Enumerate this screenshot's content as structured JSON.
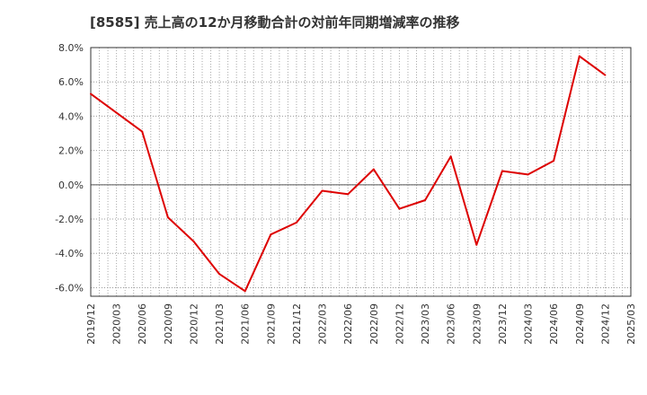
{
  "chart_data": {
    "type": "line",
    "title": "[8585]  売上高の12か月移動合計の対前年同期増減率の推移",
    "xlabel": "",
    "ylabel": "",
    "ylim": [
      -6.5,
      8.0
    ],
    "y_ticks": [
      8.0,
      6.0,
      4.0,
      2.0,
      0.0,
      -2.0,
      -4.0,
      -6.0
    ],
    "y_tick_labels": [
      "8.0%",
      "6.0%",
      "4.0%",
      "2.0%",
      "0.0%",
      "-2.0%",
      "-4.0%",
      "-6.0%"
    ],
    "x_tick_labels": [
      "2019/12",
      "2020/03",
      "2020/06",
      "2020/09",
      "2020/12",
      "2021/03",
      "2021/06",
      "2021/09",
      "2021/12",
      "2022/03",
      "2022/06",
      "2022/09",
      "2022/12",
      "2023/03",
      "2023/06",
      "2023/09",
      "2023/12",
      "2024/03",
      "2024/06",
      "2024/09",
      "2024/12",
      "2025/03"
    ],
    "grid": true,
    "legend": "none",
    "series": [
      {
        "color": "#dd0000",
        "x": [
          "2019/12",
          "2020/03",
          "2020/06",
          "2020/09",
          "2020/12",
          "2021/03",
          "2021/06",
          "2021/09",
          "2021/12",
          "2022/03",
          "2022/06",
          "2022/09",
          "2022/12",
          "2023/03",
          "2023/06",
          "2023/09",
          "2023/12",
          "2024/03",
          "2024/06",
          "2024/09",
          "2024/12"
        ],
        "values": [
          5.3,
          4.2,
          3.1,
          -1.9,
          -3.3,
          -5.2,
          -6.2,
          -2.9,
          -2.2,
          -0.35,
          -0.55,
          0.9,
          -1.4,
          -0.9,
          1.65,
          -3.5,
          0.8,
          0.6,
          1.4,
          7.5,
          6.4
        ]
      }
    ]
  }
}
